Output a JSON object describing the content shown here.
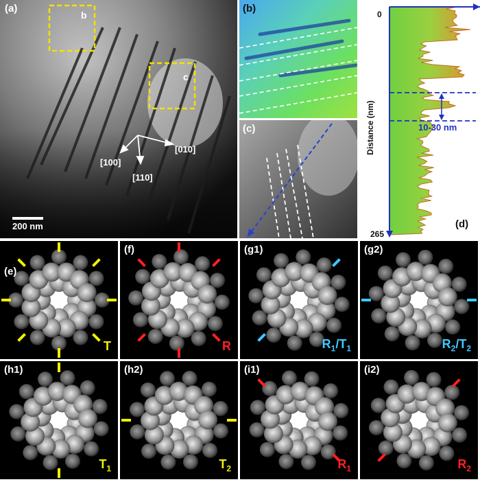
{
  "figure": {
    "panel_a": {
      "label": "(a)",
      "box_b": "b",
      "box_c": "c",
      "directions": [
        "[100]",
        "[010]",
        "[110]"
      ],
      "scale_bar": "200 nm"
    },
    "panel_b": {
      "label": "(b)"
    },
    "panel_c": {
      "label": "(c)"
    },
    "panel_d": {
      "label": "(d)",
      "axis_label": "Distance (nm)",
      "tick_top": "0",
      "tick_bottom": "265",
      "annotation": "10-30 nm"
    },
    "cbed": [
      {
        "label": "(e)",
        "tag": "T",
        "sub": "",
        "tag2": "",
        "sub2": "",
        "color": "#f0f000"
      },
      {
        "label": "(f)",
        "tag": "R",
        "sub": "",
        "tag2": "",
        "sub2": "",
        "color": "#ff2020"
      },
      {
        "label": "(g1)",
        "tag": "R",
        "sub": "1",
        "tag2": "/T",
        "sub2": "1",
        "color": "#40c8ff"
      },
      {
        "label": "(g2)",
        "tag": "R",
        "sub": "2",
        "tag2": "/T",
        "sub2": "2",
        "color": "#40c8ff"
      },
      {
        "label": "(h1)",
        "tag": "T",
        "sub": "1",
        "tag2": "",
        "sub2": "",
        "color": "#f0f000"
      },
      {
        "label": "(h2)",
        "tag": "T",
        "sub": "2",
        "tag2": "",
        "sub2": "",
        "color": "#f0f000"
      },
      {
        "label": "(i1)",
        "tag": "R",
        "sub": "1",
        "tag2": "",
        "sub2": "",
        "color": "#ff2020"
      },
      {
        "label": "(i2)",
        "tag": "R",
        "sub": "2",
        "tag2": "",
        "sub2": "",
        "color": "#ff2020"
      }
    ]
  }
}
